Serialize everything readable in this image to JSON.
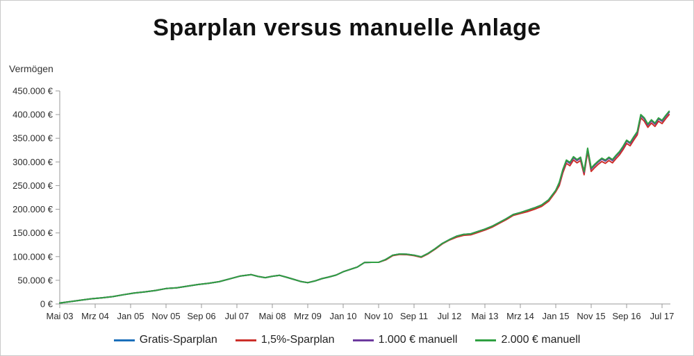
{
  "page": {
    "background": "#ffffff",
    "border_color": "#c9c9c9"
  },
  "title": "Sparplan versus manuelle Anlage",
  "y_axis_label": "Vermögen",
  "chart_data": {
    "type": "line",
    "title": "Sparplan versus manuelle Anlage",
    "ylabel": "Vermögen",
    "unit": "EUR",
    "values_in": "thousands_of_euro",
    "grid": false,
    "legend_position": "bottom",
    "ylim": [
      0,
      450
    ],
    "y_tick_values": [
      0,
      50,
      100,
      150,
      200,
      250,
      300,
      350,
      400,
      450
    ],
    "y_tick_labels": [
      "0 €",
      "50.000 €",
      "100.000 €",
      "150.000 €",
      "200.000 €",
      "250.000 €",
      "300.000 €",
      "350.000 €",
      "400.000 €",
      "450.000 €"
    ],
    "x_tick_months": [
      0,
      10,
      20,
      30,
      40,
      50,
      60,
      70,
      80,
      90,
      100,
      110,
      120,
      130,
      140,
      150,
      160,
      170
    ],
    "x_tick_labels": [
      "Mai 03",
      "Mrz 04",
      "Jan 05",
      "Nov 05",
      "Sep 06",
      "Jul 07",
      "Mai 08",
      "Mrz 09",
      "Jan 10",
      "Nov 10",
      "Sep 11",
      "Jul 12",
      "Mai 13",
      "Mrz 14",
      "Jan 15",
      "Nov 15",
      "Sep 16",
      "Jul 17"
    ],
    "x_months": [
      0,
      3,
      6,
      9,
      12,
      15,
      18,
      21,
      24,
      27,
      30,
      33,
      36,
      39,
      42,
      45,
      48,
      51,
      54,
      56,
      58,
      60,
      62,
      64,
      66,
      68,
      70,
      72,
      74,
      76,
      78,
      80,
      82,
      84,
      86,
      88,
      90,
      92,
      94,
      96,
      98,
      100,
      102,
      104,
      106,
      108,
      110,
      112,
      114,
      116,
      118,
      120,
      122,
      124,
      126,
      128,
      130,
      132,
      134,
      136,
      138,
      140,
      141,
      142,
      143,
      144,
      145,
      146,
      147,
      148,
      149,
      150,
      151,
      152,
      153,
      154,
      155,
      156,
      157,
      158,
      159,
      160,
      161,
      162,
      163,
      164,
      165,
      166,
      167,
      168,
      169,
      170,
      171,
      172
    ],
    "series": [
      {
        "name": "Gratis-Sparplan",
        "color": "#1b6fba",
        "values": [
          2,
          5,
          8,
          11,
          13,
          15.5,
          19.5,
          23,
          25.5,
          28.5,
          32.5,
          34,
          37.5,
          41,
          43.5,
          47,
          53,
          59,
          62,
          58,
          55.5,
          58.5,
          60.5,
          56.5,
          52,
          47.5,
          45,
          48.5,
          53.5,
          57,
          61,
          68,
          73,
          78,
          87.5,
          88,
          88,
          94,
          103,
          105.5,
          105,
          103,
          99.5,
          107,
          117,
          128,
          136,
          143,
          147,
          148,
          153,
          158,
          164,
          172,
          180,
          189,
          193,
          198,
          203,
          209,
          220,
          240,
          255,
          282,
          302,
          297,
          309,
          303,
          308,
          278,
          327,
          285,
          293,
          300,
          306,
          302,
          308,
          303,
          312,
          320,
          331,
          344,
          339,
          351,
          362,
          398,
          391,
          378,
          387,
          380,
          391,
          386,
          396,
          405
        ]
      },
      {
        "name": "1,5%-Sparplan",
        "color": "#cc2f2a",
        "values": [
          2,
          5,
          8,
          11,
          13,
          15.5,
          19.5,
          23,
          25.5,
          28.5,
          32.5,
          34,
          37.5,
          41,
          43.5,
          47,
          53,
          59,
          62,
          58,
          55.5,
          58.5,
          60.5,
          56.5,
          52,
          47.5,
          45,
          48.5,
          53.5,
          57,
          61,
          68,
          73,
          78,
          87.5,
          88,
          88,
          93,
          102,
          104.5,
          104,
          102,
          98.5,
          106,
          116,
          127,
          135,
          141,
          145,
          146,
          151,
          156,
          162,
          170,
          178,
          187,
          191,
          195,
          200,
          206,
          217,
          237,
          250,
          277,
          297,
          292,
          304,
          298,
          303,
          273,
          322,
          280,
          288,
          295,
          301,
          297,
          303,
          298,
          307,
          315,
          326,
          339,
          334,
          346,
          357,
          393,
          386,
          373,
          382,
          375,
          386,
          381,
          391,
          400
        ]
      },
      {
        "name": "1.000 € manuell",
        "color": "#6d3a9e",
        "values": [
          2,
          5,
          8,
          11,
          13,
          15.5,
          19.5,
          23,
          25.5,
          28.5,
          32.5,
          34,
          37.5,
          41,
          43.5,
          47,
          53,
          59,
          62,
          58,
          55.5,
          58.5,
          60.5,
          56.5,
          52,
          47.5,
          45,
          48.5,
          53.5,
          57,
          61,
          68,
          73,
          78,
          87.5,
          88,
          88,
          94,
          103,
          105.5,
          105,
          103,
          99.5,
          107,
          117,
          128,
          136,
          143,
          147,
          148,
          153,
          158,
          164,
          172,
          180,
          189,
          193,
          198,
          203,
          209,
          220,
          240,
          255,
          282,
          302,
          297,
          309,
          303,
          308,
          278,
          327,
          285,
          293,
          300,
          306,
          302,
          308,
          303,
          312,
          320,
          331,
          344,
          339,
          351,
          362,
          398,
          391,
          378,
          387,
          380,
          391,
          386,
          396,
          405
        ]
      },
      {
        "name": "2.000 € manuell",
        "color": "#2fa042",
        "values": [
          2,
          5,
          8,
          11,
          13,
          15.5,
          19.5,
          23,
          25.5,
          28.5,
          32.5,
          34,
          37.5,
          41,
          43.5,
          47,
          53,
          59,
          62,
          58,
          55.5,
          58.5,
          60.5,
          56.5,
          52,
          47.5,
          45,
          48.5,
          53.5,
          57,
          61,
          68,
          73,
          78,
          87.5,
          88,
          88,
          94,
          103,
          105.5,
          105,
          103,
          99.5,
          107,
          117,
          128,
          136,
          143,
          147,
          148,
          153,
          158,
          164,
          172,
          180,
          189,
          193,
          198,
          203,
          209,
          220,
          240,
          257,
          284,
          304,
          299,
          311,
          305,
          310,
          280,
          329,
          287,
          295,
          302,
          308,
          304,
          310,
          305,
          314,
          322,
          333,
          346,
          341,
          353,
          364,
          400,
          393,
          380,
          389,
          382,
          393,
          388,
          398,
          407
        ]
      }
    ],
    "axis_color": "#9a9a9a",
    "tick_label_color": "#2b2b2b"
  }
}
